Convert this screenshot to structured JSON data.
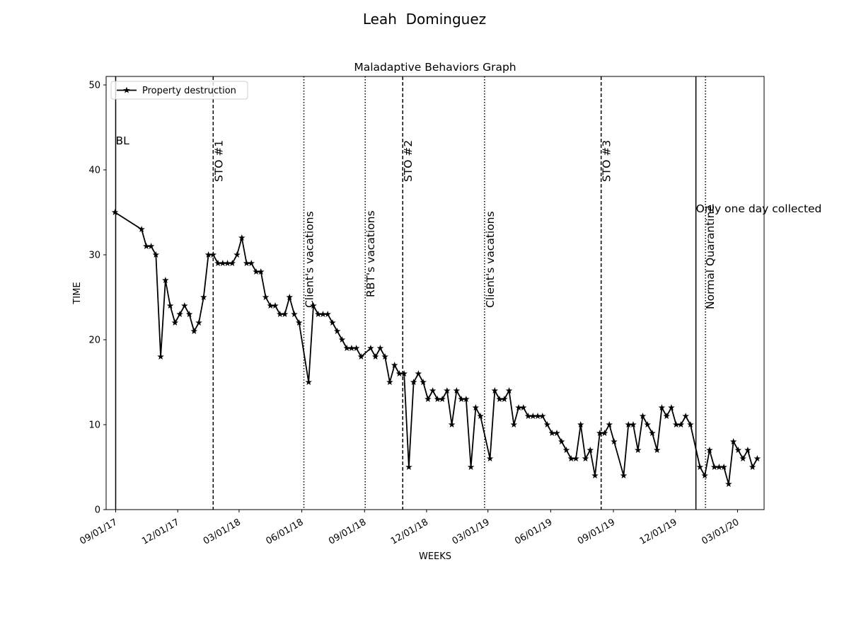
{
  "chart_data": {
    "type": "line",
    "title": "Leah  Dominguez",
    "subtitle": "Maladaptive Behaviors Graph",
    "xlabel": "WEEKS",
    "ylabel": "TIME",
    "x": [
      "2017-08-31",
      "2017-10-09",
      "2017-10-16",
      "2017-10-23",
      "2017-10-30",
      "2017-11-06",
      "2017-11-13",
      "2017-11-20",
      "2017-11-27",
      "2017-12-04",
      "2017-12-11",
      "2017-12-18",
      "2017-12-25",
      "2018-01-01",
      "2018-01-08",
      "2018-01-15",
      "2018-01-22",
      "2018-01-29",
      "2018-02-05",
      "2018-02-12",
      "2018-02-19",
      "2018-02-26",
      "2018-03-05",
      "2018-03-12",
      "2018-03-19",
      "2018-03-26",
      "2018-04-02",
      "2018-04-09",
      "2018-04-16",
      "2018-04-23",
      "2018-04-30",
      "2018-05-07",
      "2018-05-14",
      "2018-05-21",
      "2018-05-28",
      "2018-06-11",
      "2018-06-18",
      "2018-06-25",
      "2018-07-02",
      "2018-07-09",
      "2018-07-16",
      "2018-07-23",
      "2018-07-30",
      "2018-08-06",
      "2018-08-13",
      "2018-08-20",
      "2018-08-27",
      "2018-09-10",
      "2018-09-17",
      "2018-09-24",
      "2018-10-01",
      "2018-10-08",
      "2018-10-15",
      "2018-10-22",
      "2018-10-29",
      "2018-11-05",
      "2018-11-12",
      "2018-11-19",
      "2018-11-26",
      "2018-12-03",
      "2018-12-10",
      "2018-12-17",
      "2018-12-24",
      "2018-12-31",
      "2019-01-07",
      "2019-01-14",
      "2019-01-21",
      "2019-01-28",
      "2019-02-04",
      "2019-02-11",
      "2019-02-18",
      "2019-03-04",
      "2019-03-11",
      "2019-03-18",
      "2019-03-25",
      "2019-04-01",
      "2019-04-08",
      "2019-04-15",
      "2019-04-22",
      "2019-04-29",
      "2019-05-06",
      "2019-05-13",
      "2019-05-20",
      "2019-05-27",
      "2019-06-03",
      "2019-06-10",
      "2019-06-17",
      "2019-06-24",
      "2019-07-01",
      "2019-07-08",
      "2019-07-15",
      "2019-07-22",
      "2019-07-29",
      "2019-08-05",
      "2019-08-12",
      "2019-08-19",
      "2019-08-26",
      "2019-09-02",
      "2019-09-16",
      "2019-09-23",
      "2019-09-30",
      "2019-10-07",
      "2019-10-14",
      "2019-10-21",
      "2019-10-28",
      "2019-11-04",
      "2019-11-11",
      "2019-11-18",
      "2019-11-25",
      "2019-12-02",
      "2019-12-09",
      "2019-12-16",
      "2019-12-23",
      "2020-01-06",
      "2020-01-13",
      "2020-01-20",
      "2020-01-27",
      "2020-02-03",
      "2020-02-10",
      "2020-02-17",
      "2020-02-24",
      "2020-03-02",
      "2020-03-09",
      "2020-03-16",
      "2020-03-23",
      "2020-03-30"
    ],
    "series": [
      {
        "name": "Property destruction",
        "color": "#000000",
        "marker": "star",
        "values": [
          35,
          33,
          31,
          31,
          30,
          18,
          27,
          24,
          22,
          23,
          24,
          23,
          21,
          22,
          25,
          30,
          30,
          29,
          29,
          29,
          29,
          30,
          32,
          29,
          29,
          28,
          28,
          25,
          24,
          24,
          23,
          23,
          25,
          23,
          22,
          15,
          24,
          23,
          23,
          23,
          22,
          21,
          20,
          19,
          19,
          19,
          18,
          19,
          18,
          19,
          18,
          15,
          17,
          16,
          16,
          5,
          15,
          16,
          15,
          13,
          14,
          13,
          13,
          14,
          10,
          14,
          13,
          13,
          5,
          12,
          11,
          6,
          14,
          13,
          13,
          14,
          10,
          12,
          12,
          11,
          11,
          11,
          11,
          10,
          9,
          9,
          8,
          7,
          6,
          6,
          10,
          6,
          7,
          4,
          9,
          9,
          10,
          8,
          4,
          10,
          10,
          7,
          11,
          10,
          9,
          7,
          12,
          11,
          12,
          10,
          10,
          11,
          10,
          5,
          4,
          7,
          5,
          5,
          5,
          3,
          8,
          7,
          6,
          7,
          5,
          6
        ]
      }
    ],
    "markers": [
      {
        "x": "2017-09-01",
        "style": "solid",
        "label": "BL"
      },
      {
        "x": "2018-01-22",
        "style": "dashed",
        "label": "STO #1"
      },
      {
        "x": "2018-06-04",
        "style": "dotted",
        "label": "Client's vacations"
      },
      {
        "x": "2018-09-02",
        "style": "dotted",
        "label": "RBT's vacations"
      },
      {
        "x": "2018-10-27",
        "style": "dashed",
        "label": "STO #2"
      },
      {
        "x": "2019-02-24",
        "style": "dotted",
        "label": "Client's vacations"
      },
      {
        "x": "2019-08-14",
        "style": "dashed",
        "label": "STO #3"
      },
      {
        "x": "2019-12-31",
        "style": "solid",
        "label": "Only one day collected"
      },
      {
        "x": "2020-01-14",
        "style": "dotted",
        "label": "Normal Quarantine"
      }
    ],
    "xlim": [
      "2017-08-18",
      "2020-04-09"
    ],
    "xticks": [
      {
        "value": "2017-09-01",
        "label": "09/01/17"
      },
      {
        "value": "2017-12-01",
        "label": "12/01/17"
      },
      {
        "value": "2018-03-01",
        "label": "03/01/18"
      },
      {
        "value": "2018-06-01",
        "label": "06/01/18"
      },
      {
        "value": "2018-09-01",
        "label": "09/01/18"
      },
      {
        "value": "2018-12-01",
        "label": "12/01/18"
      },
      {
        "value": "2019-03-01",
        "label": "03/01/19"
      },
      {
        "value": "2019-06-01",
        "label": "06/01/19"
      },
      {
        "value": "2019-09-01",
        "label": "09/01/19"
      },
      {
        "value": "2019-12-01",
        "label": "12/01/19"
      },
      {
        "value": "2020-03-01",
        "label": "03/01/20"
      }
    ],
    "ylim": [
      0,
      51
    ],
    "yticks": [
      0,
      10,
      20,
      30,
      40,
      50
    ],
    "legend": "upper left"
  }
}
